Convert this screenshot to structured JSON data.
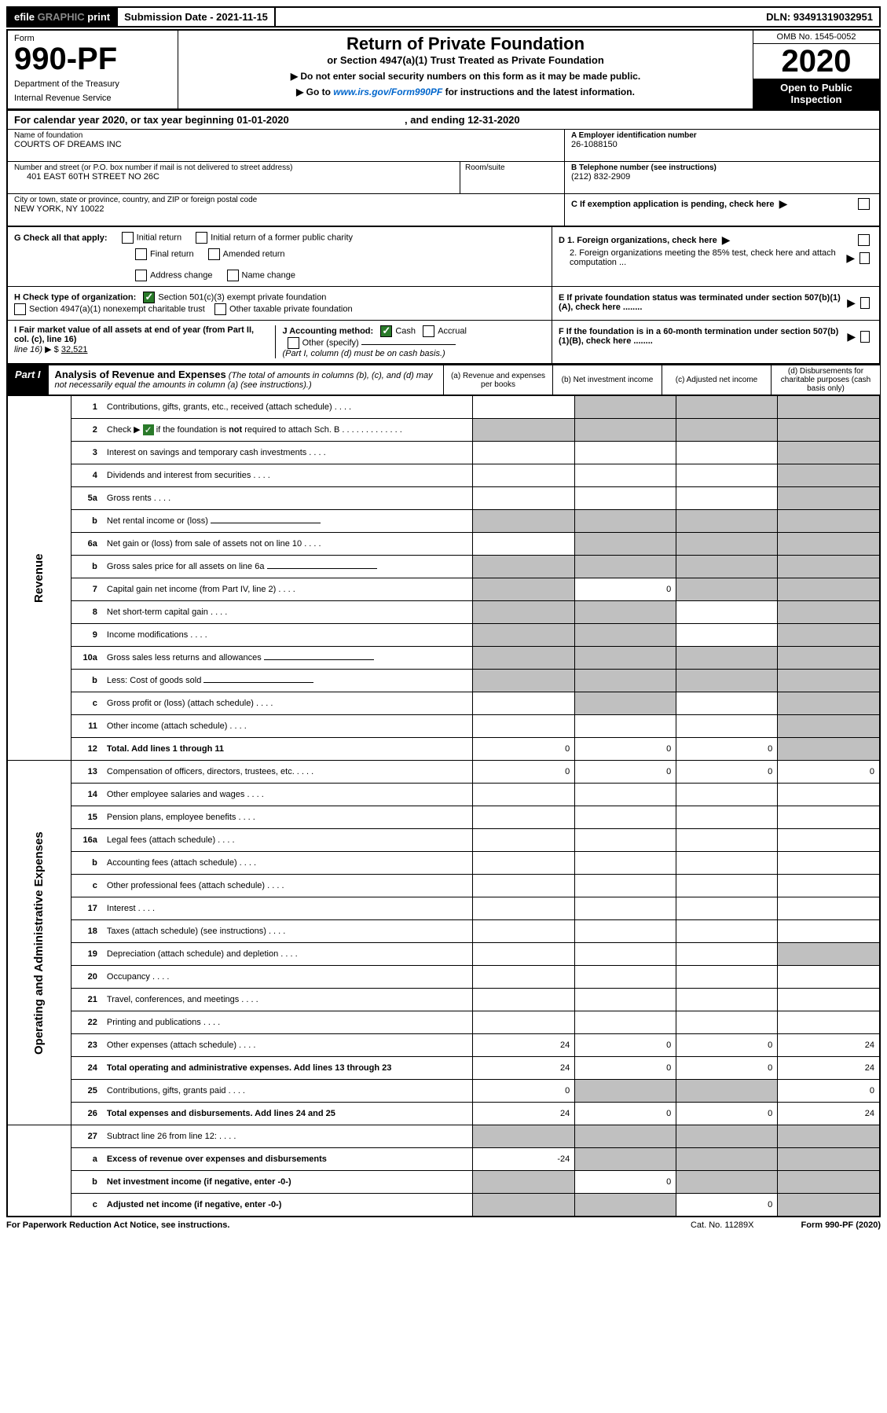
{
  "topbar": {
    "efile_prefix": "efile",
    "efile_gray": "GRAPHIC",
    "efile_suffix": "print",
    "submission": "Submission Date - 2021-11-15",
    "dln": "DLN: 93491319032951"
  },
  "header": {
    "form_label": "Form",
    "form_no": "990-PF",
    "dept1": "Department of the Treasury",
    "dept2": "Internal Revenue Service",
    "title": "Return of Private Foundation",
    "subtitle": "or Section 4947(a)(1) Trust Treated as Private Foundation",
    "note1": "▶ Do not enter social security numbers on this form as it may be made public.",
    "note2_pre": "▶ Go to ",
    "note2_link": "www.irs.gov/Form990PF",
    "note2_post": " for instructions and the latest information.",
    "omb": "OMB No. 1545-0052",
    "year": "2020",
    "open": "Open to Public Inspection"
  },
  "year_line": {
    "text_a": "For calendar year 2020, or tax year beginning 01-01-2020",
    "text_b": ", and ending 12-31-2020"
  },
  "info": {
    "name_label": "Name of foundation",
    "name": "COURTS OF DREAMS INC",
    "addr_label": "Number and street (or P.O. box number if mail is not delivered to street address)",
    "addr": "401 EAST 60TH STREET NO 26C",
    "room_label": "Room/suite",
    "city_label": "City or town, state or province, country, and ZIP or foreign postal code",
    "city": "NEW YORK, NY  10022",
    "a_label": "A Employer identification number",
    "a_val": "26-1088150",
    "b_label": "B Telephone number (see instructions)",
    "b_val": "(212) 832-2909",
    "c_label": "C If exemption application is pending, check here"
  },
  "checks": {
    "g_label": "G Check all that apply:",
    "g_opts": [
      "Initial return",
      "Initial return of a former public charity",
      "Final return",
      "Amended return",
      "Address change",
      "Name change"
    ],
    "h_label": "H Check type of organization:",
    "h1": "Section 501(c)(3) exempt private foundation",
    "h2": "Section 4947(a)(1) nonexempt charitable trust",
    "h3": "Other taxable private foundation",
    "i_label": "I Fair market value of all assets at end of year (from Part II, col. (c), line 16)",
    "i_val": "32,521",
    "i_prefix": "▶ $",
    "j_label": "J Accounting method:",
    "j_opts": [
      "Cash",
      "Accrual"
    ],
    "j_other": "Other (specify)",
    "j_note": "(Part I, column (d) must be on cash basis.)",
    "d1": "D 1. Foreign organizations, check here",
    "d2": "2. Foreign organizations meeting the 85% test, check here and attach computation ...",
    "e": "E  If private foundation status was terminated under section 507(b)(1)(A), check here ........",
    "f": "F  If the foundation is in a 60-month termination under section 507(b)(1)(B), check here ........"
  },
  "part1": {
    "tag": "Part I",
    "title_strong": "Analysis of Revenue and Expenses",
    "title_em": " (The total of amounts in columns (b), (c), and (d) may not necessarily equal the amounts in column (a) (see instructions).)",
    "cols": {
      "a": "(a)   Revenue and expenses per books",
      "b": "(b)   Net investment income",
      "c": "(c)   Adjusted net income",
      "d": "(d)   Disbursements for charitable purposes (cash basis only)"
    }
  },
  "sections": {
    "revenue": "Revenue",
    "opex": "Operating and Administrative Expenses"
  },
  "lines": [
    {
      "sec": "r",
      "n": "1",
      "d": "Contributions, gifts, grants, etc., received (attach schedule)",
      "gray": [
        false,
        true,
        true,
        true
      ]
    },
    {
      "sec": "r",
      "n": "2",
      "d": "Check ▶ ☑ if the foundation is not required to attach Sch. B",
      "gray": [
        true,
        true,
        true,
        true
      ],
      "checkgreen": true,
      "bold_not": true
    },
    {
      "sec": "r",
      "n": "3",
      "d": "Interest on savings and temporary cash investments",
      "gray": [
        false,
        false,
        false,
        true
      ]
    },
    {
      "sec": "r",
      "n": "4",
      "d": "Dividends and interest from securities",
      "gray": [
        false,
        false,
        false,
        true
      ]
    },
    {
      "sec": "r",
      "n": "5a",
      "d": "Gross rents",
      "gray": [
        false,
        false,
        false,
        true
      ]
    },
    {
      "sec": "r",
      "n": "b",
      "d": "Net rental income or (loss)",
      "gray": [
        true,
        true,
        true,
        true
      ],
      "inline": true
    },
    {
      "sec": "r",
      "n": "6a",
      "d": "Net gain or (loss) from sale of assets not on line 10",
      "gray": [
        false,
        true,
        true,
        true
      ]
    },
    {
      "sec": "r",
      "n": "b",
      "d": "Gross sales price for all assets on line 6a",
      "gray": [
        true,
        true,
        true,
        true
      ],
      "inline": true
    },
    {
      "sec": "r",
      "n": "7",
      "d": "Capital gain net income (from Part IV, line 2)",
      "gray": [
        true,
        false,
        true,
        true
      ],
      "vals": {
        "b": "0"
      }
    },
    {
      "sec": "r",
      "n": "8",
      "d": "Net short-term capital gain",
      "gray": [
        true,
        true,
        false,
        true
      ]
    },
    {
      "sec": "r",
      "n": "9",
      "d": "Income modifications",
      "gray": [
        true,
        true,
        false,
        true
      ]
    },
    {
      "sec": "r",
      "n": "10a",
      "d": "Gross sales less returns and allowances",
      "gray": [
        true,
        true,
        true,
        true
      ],
      "inline": true
    },
    {
      "sec": "r",
      "n": "b",
      "d": "Less: Cost of goods sold",
      "gray": [
        true,
        true,
        true,
        true
      ],
      "inline": true
    },
    {
      "sec": "r",
      "n": "c",
      "d": "Gross profit or (loss) (attach schedule)",
      "gray": [
        false,
        true,
        false,
        true
      ]
    },
    {
      "sec": "r",
      "n": "11",
      "d": "Other income (attach schedule)",
      "gray": [
        false,
        false,
        false,
        true
      ]
    },
    {
      "sec": "r",
      "n": "12",
      "d": "Total. Add lines 1 through 11",
      "bold": true,
      "gray": [
        false,
        false,
        false,
        true
      ],
      "vals": {
        "a": "0",
        "b": "0",
        "c": "0"
      }
    },
    {
      "sec": "o",
      "n": "13",
      "d": "Compensation of officers, directors, trustees, etc.",
      "vals": {
        "a": "0",
        "b": "0",
        "c": "0",
        "d": "0"
      }
    },
    {
      "sec": "o",
      "n": "14",
      "d": "Other employee salaries and wages"
    },
    {
      "sec": "o",
      "n": "15",
      "d": "Pension plans, employee benefits"
    },
    {
      "sec": "o",
      "n": "16a",
      "d": "Legal fees (attach schedule)"
    },
    {
      "sec": "o",
      "n": "b",
      "d": "Accounting fees (attach schedule)"
    },
    {
      "sec": "o",
      "n": "c",
      "d": "Other professional fees (attach schedule)"
    },
    {
      "sec": "o",
      "n": "17",
      "d": "Interest"
    },
    {
      "sec": "o",
      "n": "18",
      "d": "Taxes (attach schedule) (see instructions)"
    },
    {
      "sec": "o",
      "n": "19",
      "d": "Depreciation (attach schedule) and depletion",
      "gray": [
        false,
        false,
        false,
        true
      ]
    },
    {
      "sec": "o",
      "n": "20",
      "d": "Occupancy"
    },
    {
      "sec": "o",
      "n": "21",
      "d": "Travel, conferences, and meetings"
    },
    {
      "sec": "o",
      "n": "22",
      "d": "Printing and publications"
    },
    {
      "sec": "o",
      "n": "23",
      "d": "Other expenses (attach schedule)",
      "vals": {
        "a": "24",
        "b": "0",
        "c": "0",
        "d": "24"
      }
    },
    {
      "sec": "o",
      "n": "24",
      "d": "Total operating and administrative expenses. Add lines 13 through 23",
      "bold": true,
      "twoline": true,
      "vals": {
        "a": "24",
        "b": "0",
        "c": "0",
        "d": "24"
      }
    },
    {
      "sec": "o",
      "n": "25",
      "d": "Contributions, gifts, grants paid",
      "gray": [
        false,
        true,
        true,
        false
      ],
      "vals": {
        "a": "0",
        "d": "0"
      }
    },
    {
      "sec": "o",
      "n": "26",
      "d": "Total expenses and disbursements. Add lines 24 and 25",
      "bold": true,
      "vals": {
        "a": "24",
        "b": "0",
        "c": "0",
        "d": "24"
      }
    },
    {
      "sec": "x",
      "n": "27",
      "d": "Subtract line 26 from line 12:",
      "gray": [
        true,
        true,
        true,
        true
      ]
    },
    {
      "sec": "x",
      "n": "a",
      "d": "Excess of revenue over expenses and disbursements",
      "bold": true,
      "gray": [
        false,
        true,
        true,
        true
      ],
      "vals": {
        "a": "-24"
      }
    },
    {
      "sec": "x",
      "n": "b",
      "d": "Net investment income (if negative, enter -0-)",
      "bold": true,
      "gray": [
        true,
        false,
        true,
        true
      ],
      "vals": {
        "b": "0"
      }
    },
    {
      "sec": "x",
      "n": "c",
      "d": "Adjusted net income (if negative, enter -0-)",
      "bold": true,
      "gray": [
        true,
        true,
        false,
        true
      ],
      "vals": {
        "c": "0"
      }
    }
  ],
  "footer": {
    "left": "For Paperwork Reduction Act Notice, see instructions.",
    "cat": "Cat. No. 11289X",
    "right": "Form 990-PF (2020)"
  },
  "colors": {
    "black": "#000000",
    "gray_cell": "#c0c0c0",
    "link": "#0066cc",
    "check_green": "#2a7a2a"
  }
}
